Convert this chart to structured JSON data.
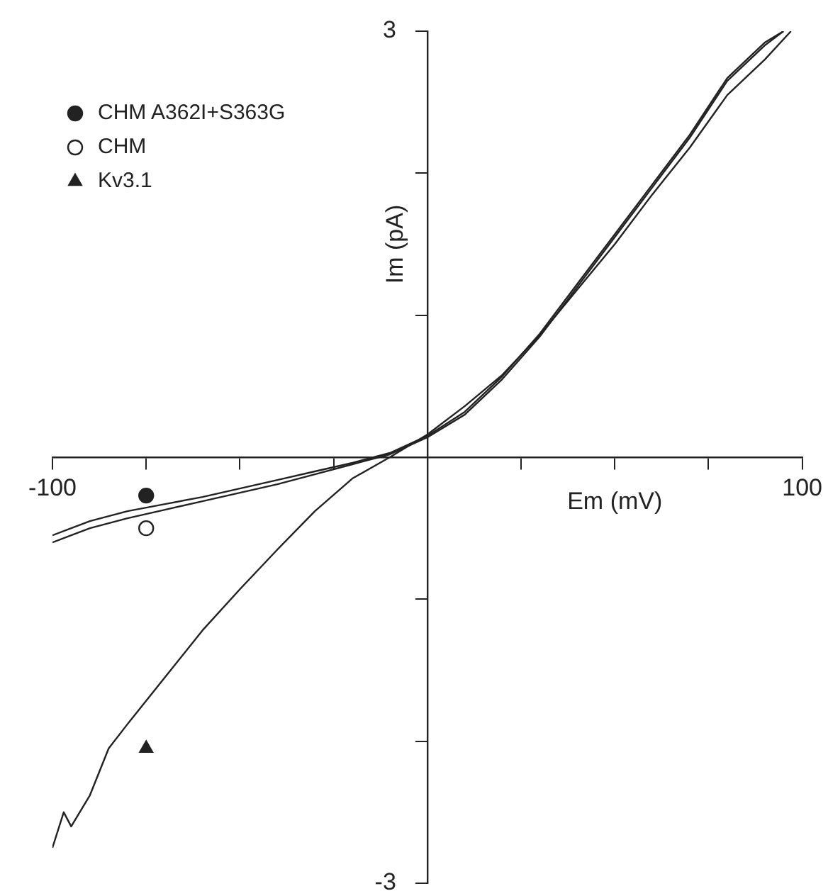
{
  "chart_data": {
    "type": "line",
    "xlabel": "Em (mV)",
    "ylabel": "Im (pA)",
    "xlim": [
      -100,
      100
    ],
    "xticks": [
      -100,
      {
        "value": -75,
        "label": null
      },
      {
        "value": -50,
        "label": null
      },
      {
        "value": -25,
        "label": null
      },
      {
        "value": 25,
        "label": null
      },
      {
        "value": 50,
        "label": null
      },
      {
        "value": 75,
        "label": null
      },
      100
    ],
    "ylim": [
      -3,
      3
    ],
    "yticks": [
      -3,
      {
        "value": -2,
        "label": null
      },
      {
        "value": -1,
        "label": null
      },
      {
        "value": 1,
        "label": null
      },
      {
        "value": 2,
        "label": null
      },
      3
    ],
    "grid": false,
    "legend": "top left",
    "series": [
      {
        "color": "#222222",
        "marker": "none",
        "x": [
          -100,
          -95,
          -90,
          -80,
          -70,
          -60,
          -50,
          -40,
          -30,
          -20,
          -10,
          0,
          10,
          20,
          30,
          40,
          50,
          60,
          70,
          80,
          90,
          95
        ],
        "values": [
          -0.55,
          -0.5,
          -0.45,
          -0.38,
          -0.33,
          -0.28,
          -0.22,
          -0.16,
          -0.1,
          -0.04,
          0.03,
          0.15,
          0.32,
          0.57,
          0.87,
          1.22,
          1.57,
          1.92,
          2.27,
          2.67,
          2.92,
          3
        ]
      },
      {
        "color": "#222222",
        "marker": "none",
        "x": [
          -100,
          -95,
          -90,
          -80,
          -70,
          -60,
          -50,
          -40,
          -30,
          -20,
          -10,
          0,
          10,
          20,
          30,
          40,
          50,
          60,
          70,
          80,
          90,
          95
        ],
        "values": [
          -0.6,
          -0.55,
          -0.5,
          -0.43,
          -0.37,
          -0.31,
          -0.25,
          -0.19,
          -0.12,
          -0.05,
          0.02,
          0.14,
          0.3,
          0.55,
          0.85,
          1.2,
          1.55,
          1.9,
          2.25,
          2.65,
          2.9,
          3
        ]
      },
      {
        "color": "#222222",
        "marker": "none",
        "x": [
          -100,
          -97,
          -95,
          -90,
          -85,
          -80,
          -70,
          -60,
          -50,
          -40,
          -30,
          -20,
          -10,
          0,
          10,
          20,
          30,
          40,
          50,
          60,
          70,
          80,
          90,
          97
        ],
        "values": [
          -2.75,
          -2.5,
          -2.6,
          -2.38,
          -2.05,
          -1.88,
          -1.55,
          -1.22,
          -0.93,
          -0.65,
          -0.38,
          -0.15,
          0,
          0.16,
          0.36,
          0.58,
          0.86,
          1.18,
          1.5,
          1.85,
          2.18,
          2.55,
          2.8,
          3
        ]
      },
      {
        "type": "scatter",
        "name": "CHM A362I+S363G",
        "color": "#222222",
        "marker": "circle",
        "x": [
          -75
        ],
        "values": [
          -0.27
        ]
      },
      {
        "type": "scatter",
        "name": "CHM",
        "color": "#ffffff",
        "marker": "circle",
        "x": [
          -75
        ],
        "values": [
          -0.5
        ]
      },
      {
        "type": "scatter",
        "name": "Kv3.1",
        "color": "#222222",
        "marker": "triangle",
        "x": [
          -75
        ],
        "values": [
          -2.05
        ]
      }
    ]
  }
}
